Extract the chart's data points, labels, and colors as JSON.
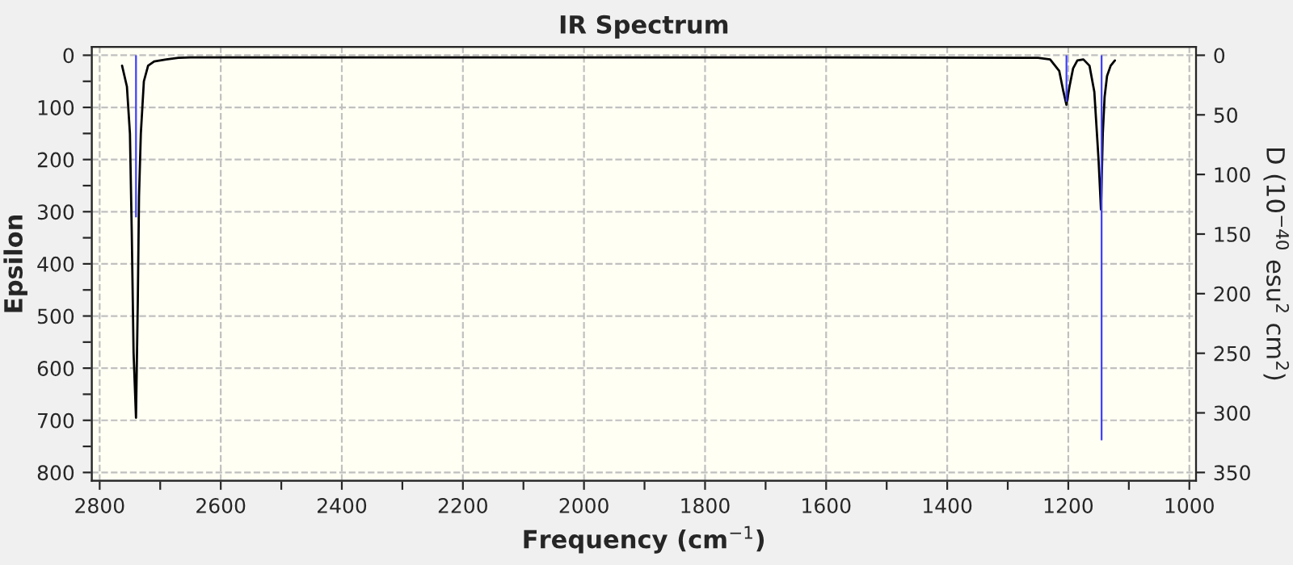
{
  "chart_data": {
    "type": "line",
    "title": "IR Spectrum",
    "xlabel": "Frequency (cm$^{−1}$)",
    "ylabel": "Epsilon",
    "y2label": "D (10$^{−40}$ esu$^{2}$ cm$^{2}$)",
    "xlim": [
      2813,
      989
    ],
    "ylim": [
      816,
      -16
    ],
    "y2lim": [
      357,
      -7
    ],
    "xticks": [
      2800,
      {
        "value": 2700,
        "label": null
      },
      2600,
      {
        "value": 2500,
        "label": null
      },
      2400,
      {
        "value": 2300,
        "label": null
      },
      2200,
      {
        "value": 2100,
        "label": null
      },
      2000,
      {
        "value": 1900,
        "label": null
      },
      1800,
      {
        "value": 1700,
        "label": null
      },
      1600,
      {
        "value": 1500,
        "label": null
      },
      1400,
      {
        "value": 1300,
        "label": null
      },
      1200,
      {
        "value": 1100,
        "label": null
      },
      1000
    ],
    "yticks": [
      0,
      {
        "value": 50,
        "label": null
      },
      100,
      {
        "value": 150,
        "label": null
      },
      200,
      {
        "value": 250,
        "label": null
      },
      300,
      {
        "value": 350,
        "label": null
      },
      400,
      {
        "value": 450,
        "label": null
      },
      500,
      {
        "value": 550,
        "label": null
      },
      600,
      {
        "value": 650,
        "label": null
      },
      700,
      {
        "value": 750,
        "label": null
      },
      800
    ],
    "y2ticks": [
      0,
      50,
      100,
      150,
      200,
      250,
      300,
      350
    ],
    "grid": true,
    "legend": false,
    "marker": "none",
    "line_style": "solid",
    "series": [
      {
        "color": "#000000",
        "x": [
          2763,
          2755,
          2750,
          2747,
          2744,
          2740,
          2737,
          2735,
          2732,
          2727,
          2720,
          2710,
          2690,
          2670,
          2650,
          2400,
          2000,
          1600,
          1250,
          1230,
          1215,
          1208,
          1203,
          1198,
          1192,
          1185,
          1175,
          1165,
          1157,
          1150,
          1146,
          1143,
          1140,
          1136,
          1130,
          1123
        ],
        "values": [
          20,
          60,
          150,
          340,
          570,
          695,
          470,
          270,
          150,
          50,
          20,
          12,
          8,
          5,
          4,
          4,
          4,
          4,
          5,
          8,
          30,
          70,
          95,
          60,
          25,
          10,
          8,
          20,
          70,
          200,
          296,
          150,
          80,
          40,
          20,
          10
        ]
      },
      {
        "type": "bar",
        "axis": "y2",
        "color": "#4040ff",
        "x": [
          2740,
          1203,
          1145
        ],
        "values": [
          136,
          39,
          323
        ]
      }
    ]
  }
}
